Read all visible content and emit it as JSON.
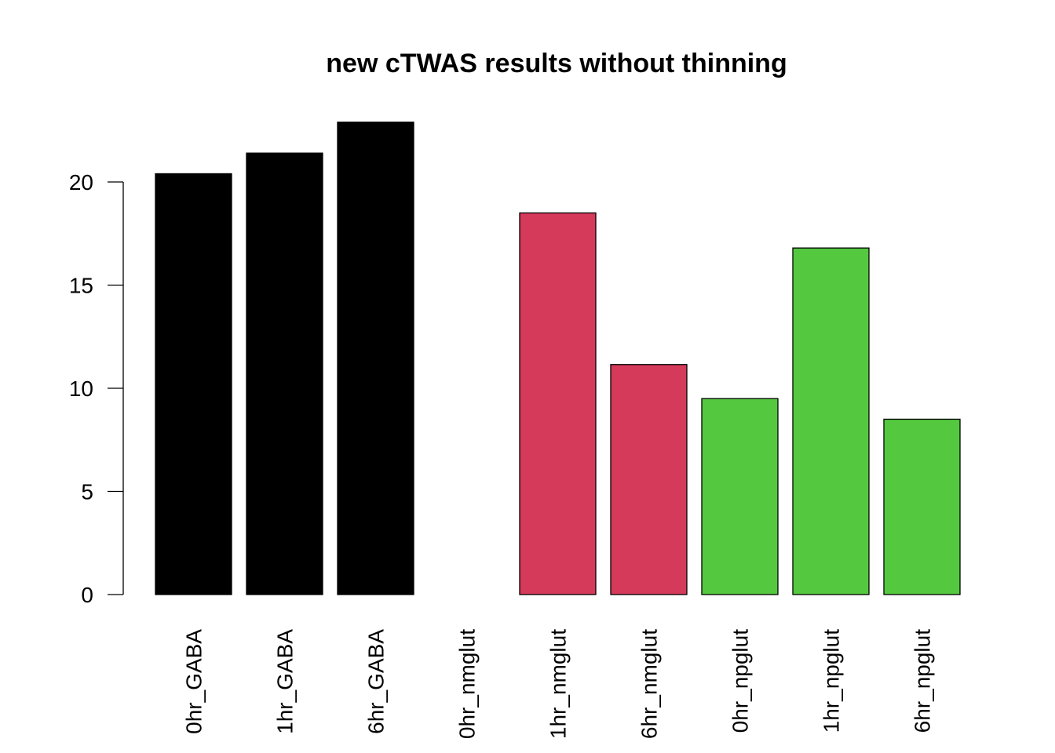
{
  "chart_data": {
    "type": "bar",
    "title": "new cTWAS results without thinning",
    "xlabel": "",
    "ylabel": "",
    "categories": [
      "0hr_GABA",
      "1hr_GABA",
      "6hr_GABA",
      "0hr_nmglut",
      "1hr_nmglut",
      "6hr_nmglut",
      "0hr_npglut",
      "1hr_npglut",
      "6hr_npglut"
    ],
    "values": [
      20.4,
      21.4,
      22.9,
      0,
      18.5,
      11.15,
      9.5,
      16.8,
      8.5
    ],
    "bar_colors": [
      "#000000",
      "#000000",
      "#000000",
      "#000000",
      "#D53A5A",
      "#D53A5A",
      "#54C940",
      "#54C940",
      "#54C940"
    ],
    "ylim": [
      0,
      23
    ],
    "yticks": [
      0,
      5,
      10,
      15,
      20
    ],
    "grid": false,
    "legend": "none"
  }
}
